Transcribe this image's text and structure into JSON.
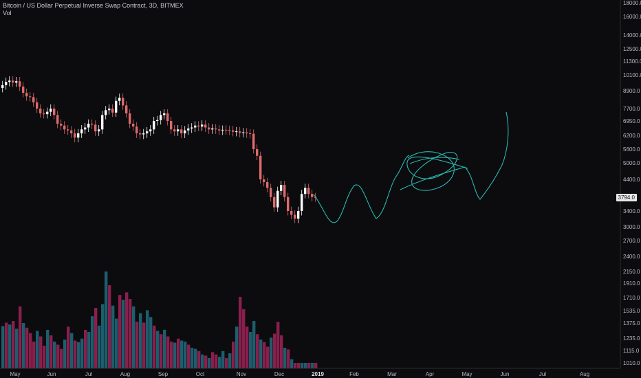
{
  "legend": {
    "symbol": "Bitcoin / US Dollar Perpetual Inverse Swap Contract, 3D, BITMEX",
    "volume": "Vol"
  },
  "price_axis": {
    "labels": [
      "18000.0",
      "16000.0",
      "14000.0",
      "12500.0",
      "11300.0",
      "10100.0",
      "8900.0",
      "7700.0",
      "6950.0",
      "6200.0",
      "5600.0",
      "5000.0",
      "4400.0",
      "3794.0",
      "3400.0",
      "3000.0",
      "2700.0",
      "2400.0",
      "2150.0",
      "1910.0",
      "1710.0",
      "1535.0",
      "1375.0",
      "1235.0",
      "1115.0",
      "1010.0"
    ],
    "current_price": "3794.0"
  },
  "time_axis": {
    "labels": [
      "May",
      "Jun",
      "Jul",
      "Aug",
      "Sep",
      "Oct",
      "Nov",
      "Dec",
      "2019",
      "Feb",
      "Mar",
      "Apr",
      "May",
      "Jun",
      "Jul",
      "Aug"
    ]
  },
  "colors": {
    "background": "#0c0c0f",
    "up_candle": "#ffffff",
    "down_candle": "#e06a6a",
    "drawing": "#2ab7b0",
    "volume_up": "#1d5e6e",
    "volume_down": "#8a1f4d"
  },
  "chart_data": {
    "type": "candlestick",
    "title": "Bitcoin / US Dollar Perpetual Inverse Swap Contract, 3D, BITMEX",
    "yscale": "log",
    "ylim": [
      1010,
      18500
    ],
    "grid": false,
    "closes": [
      9300,
      9550,
      9650,
      9500,
      9600,
      9200,
      8750,
      8500,
      8450,
      8100,
      7700,
      7400,
      7350,
      7500,
      7700,
      7300,
      6800,
      6700,
      6500,
      6450,
      6300,
      6100,
      6300,
      6500,
      6600,
      6800,
      6750,
      6400,
      6500,
      7300,
      7600,
      7700,
      7450,
      8200,
      8400,
      7900,
      7400,
      6800,
      6650,
      6300,
      6250,
      6300,
      6400,
      6500,
      6950,
      7000,
      7300,
      7400,
      6950,
      6500,
      6400,
      6500,
      6300,
      6450,
      6550,
      6600,
      6700,
      6650,
      6750,
      6600,
      6500,
      6550,
      6500,
      6450,
      6480,
      6470,
      6450,
      6380,
      6400,
      6330,
      6350,
      6300,
      6280,
      5600,
      5300,
      4400,
      4300,
      4100,
      3800,
      3500,
      4000,
      4200,
      3800,
      3400,
      3300,
      3200,
      3400,
      3900,
      4100,
      3900,
      3800,
      3794
    ],
    "volumes": [
      1345,
      1380,
      1360,
      1400,
      1320,
      1590,
      1375,
      1330,
      1280,
      1200,
      1300,
      1250,
      1160,
      1310,
      1260,
      1200,
      1170,
      1130,
      1220,
      1340,
      1280,
      1210,
      1195,
      1230,
      1310,
      1290,
      1460,
      1570,
      1350,
      1620,
      2150,
      1880,
      1600,
      1430,
      1745,
      1680,
      1780,
      1690,
      1590,
      1390,
      1500,
      1380,
      1540,
      1450,
      1350,
      1300,
      1270,
      1310,
      1250,
      1200,
      1190,
      1230,
      1210,
      1200,
      1170,
      1140,
      1130,
      1110,
      1080,
      1070,
      1050,
      1100,
      1080,
      1060,
      1110,
      1050,
      1090,
      1200,
      1340,
      1720,
      1555,
      1340,
      1290,
      1400,
      1270,
      1220,
      1195,
      1150,
      1240,
      1275,
      1390,
      1260,
      1140,
      1125,
      1040,
      1000,
      990,
      980,
      1000,
      1010,
      995,
      980
    ],
    "volume_up": [
      1,
      0,
      1,
      0,
      1,
      0,
      1,
      0,
      0,
      0,
      1,
      0,
      0,
      1,
      0,
      1,
      0,
      0,
      1,
      0,
      1,
      0,
      1,
      1,
      0,
      1,
      1,
      0,
      1,
      1,
      1,
      0,
      1,
      1,
      0,
      1,
      0,
      0,
      1,
      0,
      1,
      0,
      1,
      1,
      0,
      1,
      0,
      1,
      0,
      0,
      1,
      0,
      1,
      1,
      0,
      1,
      1,
      0,
      1,
      0,
      1,
      0,
      0,
      1,
      1,
      0,
      1,
      0,
      1,
      0,
      0,
      0,
      1,
      1,
      0,
      1,
      0,
      0,
      1,
      0,
      0,
      0,
      1,
      0,
      1,
      0,
      0,
      1,
      1,
      0,
      1,
      0
    ],
    "projection_drawing": true
  }
}
